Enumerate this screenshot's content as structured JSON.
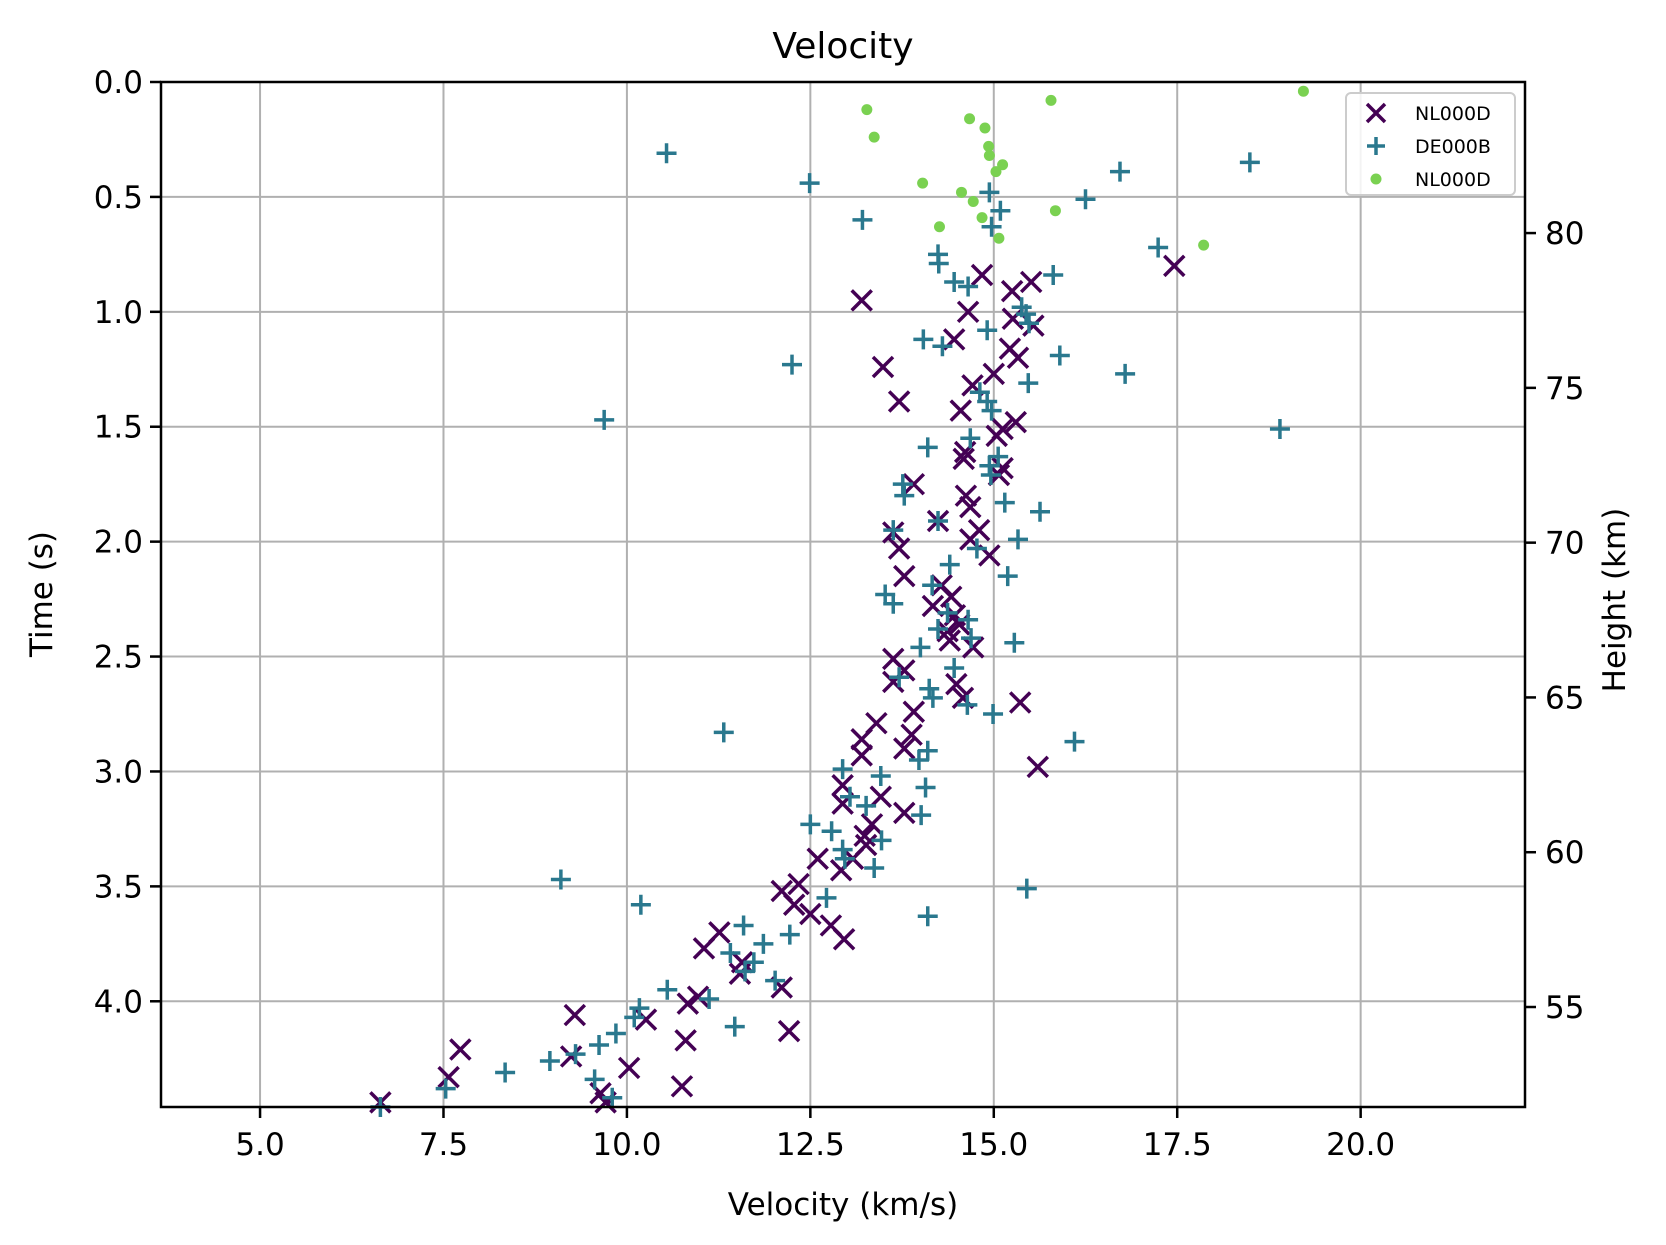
{
  "chart_data": {
    "type": "scatter",
    "title": "Velocity",
    "xlabel": "Velocity (km/s)",
    "ylabel": "Time (s)",
    "y2label": "Height (km)",
    "xlim": [
      3.65,
      22.24
    ],
    "ylim": [
      4.46,
      0.0
    ],
    "y2lim": [
      51.77,
      84.88
    ],
    "y_inverted": true,
    "grid": true,
    "legend_position": "top-right",
    "xticks": [
      "5.0",
      "7.5",
      "10.0",
      "12.5",
      "15.0",
      "17.5",
      "20.0"
    ],
    "xtick_values": [
      5.0,
      7.5,
      10.0,
      12.5,
      15.0,
      17.5,
      20.0
    ],
    "yticks": [
      "0.0",
      "0.5",
      "1.0",
      "1.5",
      "2.0",
      "2.5",
      "3.0",
      "3.5",
      "4.0"
    ],
    "ytick_values": [
      0,
      0.5,
      1.0,
      1.5,
      2.0,
      2.5,
      3.0,
      3.5,
      4.0
    ],
    "y2ticks": [
      "55",
      "60",
      "65",
      "70",
      "75",
      "80"
    ],
    "y2tick_values": [
      55,
      60,
      65,
      70,
      75,
      80
    ],
    "series": [
      {
        "name": "NL000D",
        "marker": "x",
        "color": "#440154",
        "points": [
          [
            17.46,
            0.8
          ],
          [
            13.2,
            0.95
          ],
          [
            14.84,
            0.84
          ],
          [
            15.51,
            0.87
          ],
          [
            15.25,
            0.91
          ],
          [
            14.65,
            1.0
          ],
          [
            15.26,
            1.03
          ],
          [
            15.54,
            1.06
          ],
          [
            14.46,
            1.12
          ],
          [
            15.22,
            1.16
          ],
          [
            15.33,
            1.2
          ],
          [
            13.49,
            1.24
          ],
          [
            15.0,
            1.27
          ],
          [
            14.71,
            1.32
          ],
          [
            13.71,
            1.39
          ],
          [
            14.55,
            1.43
          ],
          [
            15.3,
            1.48
          ],
          [
            15.12,
            1.51
          ],
          [
            15.04,
            1.54
          ],
          [
            14.61,
            1.61
          ],
          [
            14.59,
            1.64
          ],
          [
            15.12,
            1.68
          ],
          [
            15.07,
            1.71
          ],
          [
            13.91,
            1.75
          ],
          [
            14.62,
            1.8
          ],
          [
            14.68,
            1.85
          ],
          [
            14.24,
            1.91
          ],
          [
            14.8,
            1.95
          ],
          [
            14.68,
            1.99
          ],
          [
            13.63,
            1.96
          ],
          [
            13.71,
            2.03
          ],
          [
            14.94,
            2.06
          ],
          [
            13.78,
            2.15
          ],
          [
            14.29,
            2.19
          ],
          [
            14.42,
            2.24
          ],
          [
            14.17,
            2.28
          ],
          [
            14.47,
            2.32
          ],
          [
            14.53,
            2.36
          ],
          [
            14.37,
            2.39
          ],
          [
            14.4,
            2.43
          ],
          [
            14.72,
            2.46
          ],
          [
            13.63,
            2.51
          ],
          [
            13.78,
            2.56
          ],
          [
            13.63,
            2.61
          ],
          [
            14.49,
            2.62
          ],
          [
            14.58,
            2.68
          ],
          [
            15.36,
            2.7
          ],
          [
            13.91,
            2.74
          ],
          [
            13.4,
            2.79
          ],
          [
            13.88,
            2.84
          ],
          [
            13.2,
            2.86
          ],
          [
            13.78,
            2.9
          ],
          [
            13.2,
            2.93
          ],
          [
            15.6,
            2.98
          ],
          [
            12.94,
            3.06
          ],
          [
            13.46,
            3.11
          ],
          [
            12.94,
            3.14
          ],
          [
            13.78,
            3.18
          ],
          [
            13.34,
            3.23
          ],
          [
            13.24,
            3.28
          ],
          [
            13.26,
            3.32
          ],
          [
            12.6,
            3.38
          ],
          [
            12.92,
            3.43
          ],
          [
            13.08,
            3.38
          ],
          [
            12.11,
            3.52
          ],
          [
            12.34,
            3.49
          ],
          [
            12.28,
            3.58
          ],
          [
            12.5,
            3.62
          ],
          [
            12.78,
            3.67
          ],
          [
            12.96,
            3.73
          ],
          [
            11.26,
            3.7
          ],
          [
            11.05,
            3.77
          ],
          [
            11.57,
            3.83
          ],
          [
            11.54,
            3.88
          ],
          [
            12.11,
            3.94
          ],
          [
            10.97,
            3.98
          ],
          [
            10.83,
            4.01
          ],
          [
            10.26,
            4.08
          ],
          [
            9.29,
            4.06
          ],
          [
            12.21,
            4.13
          ],
          [
            10.8,
            4.17
          ],
          [
            7.73,
            4.21
          ],
          [
            9.24,
            4.24
          ],
          [
            10.03,
            4.29
          ],
          [
            7.57,
            4.33
          ],
          [
            10.75,
            4.37
          ],
          [
            9.64,
            4.4
          ],
          [
            6.64,
            4.44
          ],
          [
            9.71,
            4.44
          ]
        ]
      },
      {
        "name": "DE000B",
        "marker": "+",
        "color": "#2a788e",
        "points": [
          [
            10.54,
            0.31
          ],
          [
            18.49,
            0.35
          ],
          [
            12.49,
            0.44
          ],
          [
            16.72,
            0.39
          ],
          [
            14.94,
            0.48
          ],
          [
            16.25,
            0.51
          ],
          [
            15.09,
            0.56
          ],
          [
            13.21,
            0.6
          ],
          [
            14.97,
            0.63
          ],
          [
            17.24,
            0.72
          ],
          [
            14.24,
            0.75
          ],
          [
            14.25,
            0.79
          ],
          [
            15.81,
            0.84
          ],
          [
            14.46,
            0.87
          ],
          [
            14.65,
            0.89
          ],
          [
            15.38,
            0.98
          ],
          [
            15.44,
            1.01
          ],
          [
            15.48,
            1.05
          ],
          [
            14.91,
            1.08
          ],
          [
            14.04,
            1.12
          ],
          [
            14.3,
            1.15
          ],
          [
            15.9,
            1.19
          ],
          [
            12.25,
            1.23
          ],
          [
            16.79,
            1.27
          ],
          [
            15.47,
            1.31
          ],
          [
            14.81,
            1.35
          ],
          [
            14.91,
            1.39
          ],
          [
            14.97,
            1.43
          ],
          [
            9.69,
            1.47
          ],
          [
            18.9,
            1.51
          ],
          [
            14.68,
            1.55
          ],
          [
            14.1,
            1.59
          ],
          [
            15.06,
            1.63
          ],
          [
            14.94,
            1.67
          ],
          [
            14.96,
            1.71
          ],
          [
            13.76,
            1.75
          ],
          [
            13.78,
            1.8
          ],
          [
            15.15,
            1.83
          ],
          [
            15.63,
            1.87
          ],
          [
            14.24,
            1.91
          ],
          [
            13.63,
            1.95
          ],
          [
            15.33,
            1.99
          ],
          [
            14.77,
            2.03
          ],
          [
            14.4,
            2.1
          ],
          [
            15.19,
            2.15
          ],
          [
            14.16,
            2.19
          ],
          [
            13.52,
            2.23
          ],
          [
            13.63,
            2.27
          ],
          [
            14.37,
            2.31
          ],
          [
            14.65,
            2.34
          ],
          [
            14.24,
            2.38
          ],
          [
            14.69,
            2.42
          ],
          [
            15.28,
            2.44
          ],
          [
            14.0,
            2.46
          ],
          [
            14.46,
            2.55
          ],
          [
            13.71,
            2.59
          ],
          [
            14.12,
            2.64
          ],
          [
            14.17,
            2.68
          ],
          [
            14.64,
            2.71
          ],
          [
            14.99,
            2.75
          ],
          [
            11.32,
            2.83
          ],
          [
            16.1,
            2.87
          ],
          [
            14.1,
            2.91
          ],
          [
            13.98,
            2.95
          ],
          [
            12.94,
            2.99
          ],
          [
            13.46,
            3.02
          ],
          [
            14.07,
            3.07
          ],
          [
            13.04,
            3.11
          ],
          [
            13.26,
            3.15
          ],
          [
            14.01,
            3.19
          ],
          [
            12.5,
            3.23
          ],
          [
            12.79,
            3.26
          ],
          [
            13.47,
            3.3
          ],
          [
            12.94,
            3.34
          ],
          [
            12.97,
            3.38
          ],
          [
            13.37,
            3.42
          ],
          [
            9.1,
            3.47
          ],
          [
            15.45,
            3.51
          ],
          [
            12.72,
            3.55
          ],
          [
            10.19,
            3.58
          ],
          [
            14.1,
            3.63
          ],
          [
            11.59,
            3.67
          ],
          [
            12.22,
            3.71
          ],
          [
            11.86,
            3.75
          ],
          [
            11.41,
            3.79
          ],
          [
            11.73,
            3.83
          ],
          [
            11.61,
            3.87
          ],
          [
            12.02,
            3.91
          ],
          [
            10.55,
            3.95
          ],
          [
            11.12,
            3.99
          ],
          [
            10.17,
            4.03
          ],
          [
            10.1,
            4.07
          ],
          [
            11.47,
            4.11
          ],
          [
            9.85,
            4.14
          ],
          [
            9.62,
            4.19
          ],
          [
            9.3,
            4.23
          ],
          [
            8.95,
            4.26
          ],
          [
            8.34,
            4.31
          ],
          [
            9.56,
            4.34
          ],
          [
            7.53,
            4.38
          ],
          [
            9.8,
            4.42
          ],
          [
            6.64,
            4.46
          ]
        ]
      },
      {
        "name": "NL000D",
        "marker": "o",
        "color": "#7ad151",
        "points": [
          [
            19.22,
            0.04
          ],
          [
            15.78,
            0.08
          ],
          [
            13.27,
            0.12
          ],
          [
            14.67,
            0.16
          ],
          [
            14.88,
            0.2
          ],
          [
            13.37,
            0.24
          ],
          [
            14.93,
            0.28
          ],
          [
            14.94,
            0.32
          ],
          [
            15.12,
            0.36
          ],
          [
            15.03,
            0.39
          ],
          [
            14.03,
            0.44
          ],
          [
            14.56,
            0.48
          ],
          [
            14.72,
            0.52
          ],
          [
            15.84,
            0.56
          ],
          [
            14.84,
            0.59
          ],
          [
            14.26,
            0.63
          ],
          [
            15.07,
            0.68
          ],
          [
            17.86,
            0.71
          ]
        ]
      }
    ]
  }
}
